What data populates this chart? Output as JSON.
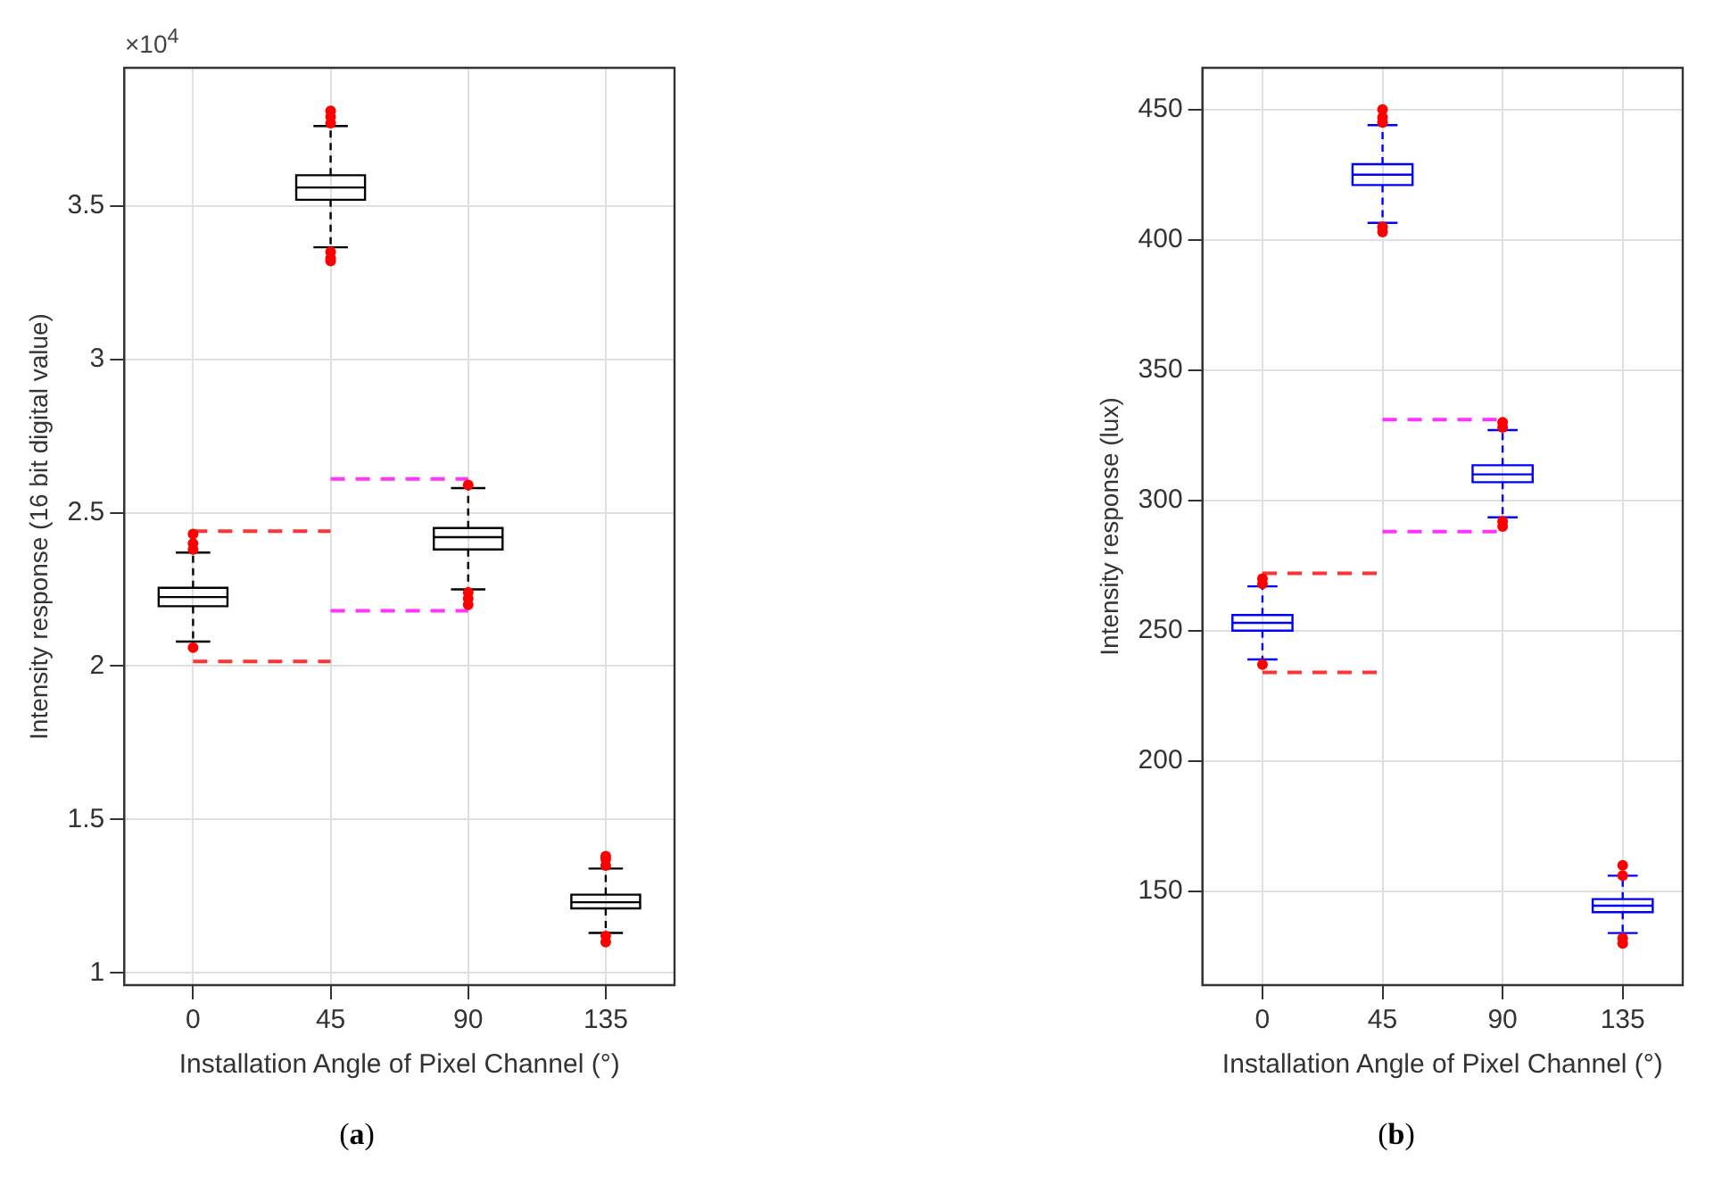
{
  "chart_data": [
    {
      "type": "box",
      "title": "(a)",
      "xlabel": "Installation Angle of Pixel Channel (°)",
      "ylabel": "Intensity response (16 bit digital value)",
      "annotations": [
        "×10$^{4}$"
      ],
      "categories": [
        "0",
        "45",
        "90",
        "135"
      ],
      "ylim": [
        0.96,
        3.95
      ],
      "yticks": [
        1,
        1.5,
        2,
        2.5,
        3,
        3.5
      ],
      "grid": true,
      "legend": false,
      "series": [
        {
          "type": "box",
          "color": "#000000",
          "boxes": [
            {
              "low": 2.08,
              "q1": 2.195,
              "median": 2.225,
              "q3": 2.255,
              "high": 2.37,
              "outliers": [
                2.06,
                2.38,
                2.4,
                2.43
              ]
            },
            {
              "low": 3.365,
              "q1": 3.52,
              "median": 3.56,
              "q3": 3.6,
              "high": 3.76,
              "outliers": [
                3.35,
                3.33,
                3.32,
                3.77,
                3.79,
                3.81
              ]
            },
            {
              "low": 2.25,
              "q1": 2.38,
              "median": 2.42,
              "q3": 2.45,
              "high": 2.58,
              "outliers": [
                2.24,
                2.22,
                2.2,
                2.59
              ]
            },
            {
              "low": 1.13,
              "q1": 1.21,
              "median": 1.23,
              "q3": 1.255,
              "high": 1.34,
              "outliers": [
                1.12,
                1.1,
                1.35,
                1.37,
                1.38
              ]
            }
          ]
        },
        {
          "type": "line",
          "color": "#ff3333",
          "line_style": "dashed",
          "marker": "none",
          "x": [
            "0",
            "45"
          ],
          "values": [
            2.44,
            2.44
          ]
        },
        {
          "type": "line",
          "color": "#ff3333",
          "line_style": "dashed",
          "marker": "none",
          "x": [
            "0",
            "45"
          ],
          "values": [
            2.015,
            2.015
          ]
        },
        {
          "type": "line",
          "color": "#ff33ff",
          "line_style": "dashed",
          "marker": "none",
          "x": [
            "45",
            "90"
          ],
          "values": [
            2.61,
            2.61
          ]
        },
        {
          "type": "line",
          "color": "#ff33ff",
          "line_style": "dashed",
          "marker": "none",
          "x": [
            "45",
            "90"
          ],
          "values": [
            2.18,
            2.18
          ]
        }
      ]
    },
    {
      "type": "box",
      "title": "(b)",
      "xlabel": "Installation Angle of Pixel Channel (°)",
      "ylabel": "Intensity response (lux)",
      "categories": [
        "0",
        "45",
        "90",
        "135"
      ],
      "ylim": [
        114,
        466
      ],
      "yticks": [
        150,
        200,
        250,
        300,
        350,
        400,
        450
      ],
      "grid": true,
      "legend": false,
      "series": [
        {
          "type": "box",
          "color": "#0000ff",
          "boxes": [
            {
              "low": 239,
              "q1": 250,
              "median": 253,
              "q3": 256,
              "high": 267,
              "outliers": [
                237,
                268,
                270
              ]
            },
            {
              "low": 406.5,
              "q1": 421,
              "median": 425,
              "q3": 429,
              "high": 444,
              "outliers": [
                405,
                403,
                445,
                447,
                450
              ]
            },
            {
              "low": 293.5,
              "q1": 307,
              "median": 310,
              "q3": 313.5,
              "high": 327,
              "outliers": [
                292,
                290,
                328,
                330
              ]
            },
            {
              "low": 134,
              "q1": 142,
              "median": 144.5,
              "q3": 147,
              "high": 156,
              "outliers": [
                132,
                130,
                156,
                160
              ]
            }
          ]
        },
        {
          "type": "line",
          "color": "#ff3333",
          "line_style": "dashed",
          "marker": "none",
          "x": [
            "0",
            "45"
          ],
          "values": [
            272,
            272
          ]
        },
        {
          "type": "line",
          "color": "#ff3333",
          "line_style": "dashed",
          "marker": "none",
          "x": [
            "0",
            "45"
          ],
          "values": [
            234,
            234
          ]
        },
        {
          "type": "line",
          "color": "#ff33ff",
          "line_style": "dashed",
          "marker": "none",
          "x": [
            "45",
            "90"
          ],
          "values": [
            331,
            331
          ]
        },
        {
          "type": "line",
          "color": "#ff33ff",
          "line_style": "dashed",
          "marker": "none",
          "x": [
            "45",
            "90"
          ],
          "values": [
            288,
            288
          ]
        }
      ]
    }
  ]
}
